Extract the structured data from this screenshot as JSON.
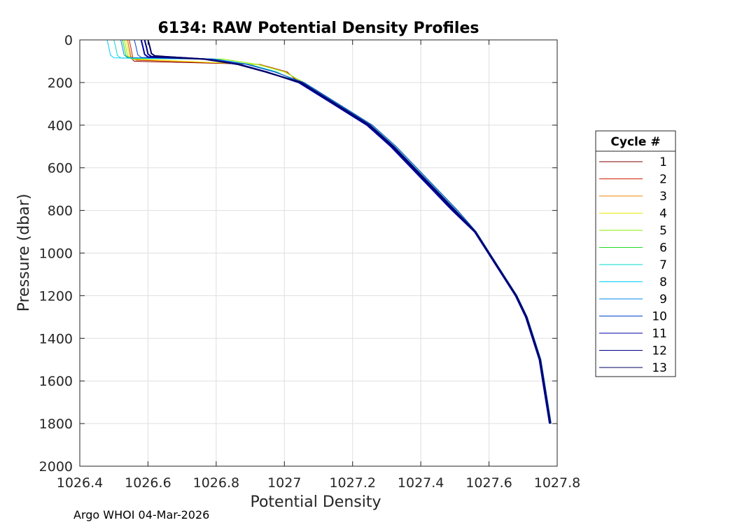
{
  "chart_data": {
    "type": "line",
    "title": "6134: RAW Potential Density Profiles",
    "xlabel": "Potential Density",
    "ylabel": "Pressure (dbar)",
    "xlim": [
      1026.4,
      1027.8
    ],
    "ylim": [
      0,
      2000
    ],
    "y_reversed": true,
    "grid": true,
    "x_ticks": [
      "1026.4",
      "1026.6",
      "1026.8",
      "1027",
      "1027.2",
      "1027.4",
      "1027.6",
      "1027.8"
    ],
    "y_ticks": [
      "0",
      "200",
      "400",
      "600",
      "800",
      "1000",
      "1200",
      "1400",
      "1600",
      "1800",
      "2000"
    ],
    "legend": {
      "title": "Cycle #",
      "placement": "right"
    },
    "series": [
      {
        "name": "1",
        "color": "#800000",
        "shallow_pressure": 100,
        "mixed_density": 1026.54,
        "deep": true
      },
      {
        "name": "2",
        "color": "#cc2200",
        "shallow_pressure": 95,
        "mixed_density": 1026.545,
        "deep": true
      },
      {
        "name": "3",
        "color": "#ee8800",
        "shallow_pressure": 92,
        "mixed_density": 1026.54,
        "deep": true
      },
      {
        "name": "4",
        "color": "#e8e800",
        "shallow_pressure": 90,
        "mixed_density": 1026.535,
        "deep": true
      },
      {
        "name": "5",
        "color": "#88ee00",
        "shallow_pressure": 88,
        "mixed_density": 1026.53,
        "deep": true
      },
      {
        "name": "6",
        "color": "#22dd22",
        "shallow_pressure": 86,
        "mixed_density": 1026.525,
        "deep": true
      },
      {
        "name": "7",
        "color": "#00ddcc",
        "shallow_pressure": 85,
        "mixed_density": 1026.5,
        "deep": true
      },
      {
        "name": "8",
        "color": "#00ccff",
        "shallow_pressure": 84,
        "mixed_density": 1026.48,
        "deep": true
      },
      {
        "name": "9",
        "color": "#0088ee",
        "shallow_pressure": 83,
        "mixed_density": 1026.52,
        "deep": true
      },
      {
        "name": "10",
        "color": "#0044cc",
        "shallow_pressure": 82,
        "mixed_density": 1026.56,
        "deep": true
      },
      {
        "name": "11",
        "color": "#0000aa",
        "shallow_pressure": 80,
        "mixed_density": 1026.58,
        "deep": true
      },
      {
        "name": "12",
        "color": "#000088",
        "shallow_pressure": 78,
        "mixed_density": 1026.59,
        "deep": true
      },
      {
        "name": "13",
        "color": "#000066",
        "shallow_pressure": 75,
        "mixed_density": 1026.6,
        "deep": true
      }
    ],
    "common_profile": [
      {
        "density": 1026.6,
        "pressure": 75
      },
      {
        "density": 1026.7,
        "pressure": 80
      },
      {
        "density": 1026.8,
        "pressure": 90
      },
      {
        "density": 1026.9,
        "pressure": 115
      },
      {
        "density": 1026.98,
        "pressure": 150
      },
      {
        "density": 1027.05,
        "pressure": 200
      },
      {
        "density": 1027.15,
        "pressure": 300
      },
      {
        "density": 1027.25,
        "pressure": 400
      },
      {
        "density": 1027.32,
        "pressure": 500
      },
      {
        "density": 1027.38,
        "pressure": 600
      },
      {
        "density": 1027.44,
        "pressure": 700
      },
      {
        "density": 1027.5,
        "pressure": 800
      },
      {
        "density": 1027.56,
        "pressure": 900
      },
      {
        "density": 1027.6,
        "pressure": 1000
      },
      {
        "density": 1027.64,
        "pressure": 1100
      },
      {
        "density": 1027.68,
        "pressure": 1200
      },
      {
        "density": 1027.71,
        "pressure": 1300
      },
      {
        "density": 1027.73,
        "pressure": 1400
      },
      {
        "density": 1027.75,
        "pressure": 1500
      },
      {
        "density": 1027.76,
        "pressure": 1600
      },
      {
        "density": 1027.77,
        "pressure": 1700
      },
      {
        "density": 1027.78,
        "pressure": 1800
      }
    ]
  },
  "footer": "Argo WHOI 04-Mar-2026"
}
